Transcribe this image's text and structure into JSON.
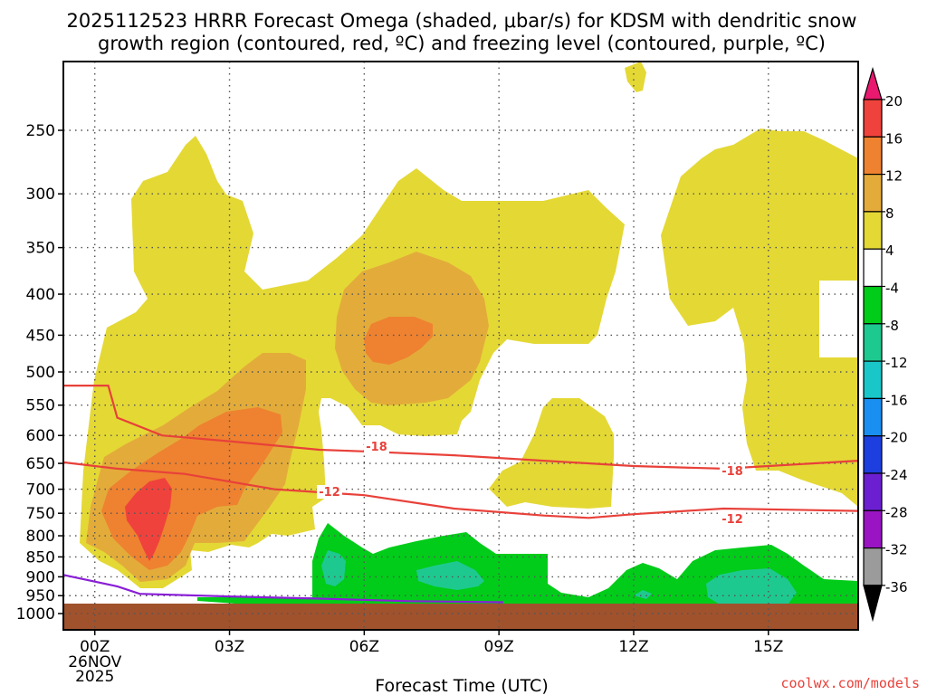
{
  "chart_data": {
    "type": "heatmap",
    "title_line1": "2025112523 HRRR Forecast Omega (shaded, μbar/s) for KDSM with dendritic snow",
    "title_line2": "growth region (contoured, red, ºC) and freezing level (contoured, purple, ºC)",
    "xlabel": "Forecast Time (UTC)",
    "ylabel": "",
    "x_ticks": [
      "00Z",
      "03Z",
      "06Z",
      "09Z",
      "12Z",
      "15Z"
    ],
    "x_date_label": [
      "26NOV",
      "2025"
    ],
    "y_ticks": [
      "250",
      "300",
      "350",
      "400",
      "450",
      "500",
      "550",
      "600",
      "650",
      "700",
      "750",
      "800",
      "850",
      "900",
      "950",
      "1000"
    ],
    "x_range_hours": [
      -0.7,
      17.0
    ],
    "y_range_hpa": [
      1000,
      200
    ],
    "colorbar": {
      "labels": [
        "20",
        "16",
        "12",
        "8",
        "4",
        "-4",
        "-8",
        "-12",
        "-16",
        "-20",
        "-24",
        "-28",
        "-32",
        "-36"
      ],
      "colors": [
        "#e8196e",
        "#f0423c",
        "#ee8230",
        "#e3ac3a",
        "#e4d835",
        "#ffffff",
        "#00cc19",
        "#1ec990",
        "#19c7c8",
        "#1a8ff2",
        "#1d3fe0",
        "#6b1fd1",
        "#9a14c4",
        "#9b9b9b",
        "#000000"
      ]
    },
    "series": [
      {
        "name": "-18",
        "type": "contour",
        "color": "#e8413a",
        "points": [
          [
            -0.7,
            520
          ],
          [
            0.3,
            520
          ],
          [
            0.5,
            570
          ],
          [
            1.5,
            600
          ],
          [
            3,
            610
          ],
          [
            5,
            625
          ],
          [
            6,
            628
          ],
          [
            8,
            635
          ],
          [
            10,
            645
          ],
          [
            12,
            655
          ],
          [
            14,
            660
          ],
          [
            15,
            655
          ],
          [
            17,
            645
          ]
        ]
      },
      {
        "name": "-12",
        "type": "contour",
        "color": "#e8413a",
        "points": [
          [
            -0.7,
            648
          ],
          [
            0.5,
            660
          ],
          [
            2,
            670
          ],
          [
            4,
            700
          ],
          [
            6,
            712
          ],
          [
            8,
            740
          ],
          [
            10,
            755
          ],
          [
            11,
            760
          ],
          [
            12,
            752
          ],
          [
            14,
            740
          ],
          [
            17,
            745
          ]
        ]
      },
      {
        "name": "0",
        "type": "contour",
        "color": "#8a1fd6",
        "points": [
          [
            -0.7,
            895
          ],
          [
            0.5,
            925
          ],
          [
            1,
            945
          ],
          [
            3,
            952
          ],
          [
            5,
            958
          ],
          [
            7,
            965
          ],
          [
            9.1,
            968
          ]
        ]
      }
    ],
    "contour_labels": [
      "-18",
      "-12",
      "-12",
      "-18"
    ],
    "terrain_color": "#a0522d"
  },
  "credit": "coolwx.com/models"
}
